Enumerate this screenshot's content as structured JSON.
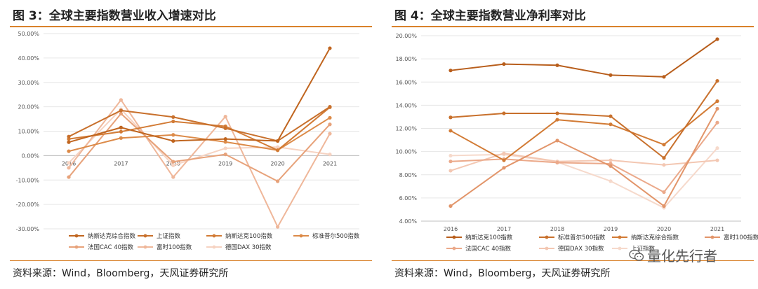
{
  "source_text": "资料来源：Wind，Bloomberg，天风证券研究所",
  "watermark_text": "量化先行者",
  "watermark_icon": "wechat-icon",
  "chart_data": [
    {
      "type": "line",
      "title": "图 3：全球主要指数营业收入增速对比",
      "xlabel": "",
      "ylabel": "",
      "x": [
        "2016",
        "2017",
        "2018",
        "2019",
        "2020",
        "2021"
      ],
      "ylim": [
        -0.3,
        0.5
      ],
      "yticks": [
        "50.00%",
        "40.00%",
        "30.00%",
        "20.00%",
        "10.00%",
        "0.00%",
        "-10.00%",
        "-20.00%",
        "-30.00%"
      ],
      "grid": true,
      "legend": "bottom",
      "series": [
        {
          "name": "纳斯达克综合指数",
          "color": "#c0651f",
          "values": [
            0.055,
            0.115,
            0.06,
            0.068,
            0.06,
            0.44
          ]
        },
        {
          "name": "上证指数",
          "color": "#c8702c",
          "values": [
            0.078,
            0.185,
            0.158,
            0.112,
            0.06,
            0.2
          ]
        },
        {
          "name": "纳斯达克100指数",
          "color": "#d27b35",
          "values": [
            0.068,
            0.098,
            0.14,
            0.12,
            0.022,
            0.198
          ]
        },
        {
          "name": "标准普尔500指数",
          "color": "#dc8a48",
          "values": [
            0.018,
            0.072,
            0.085,
            0.056,
            0.022,
            0.155
          ]
        },
        {
          "name": "法国CAC 40指数",
          "color": "#e7a27a",
          "values": [
            -0.088,
            0.172,
            -0.025,
            0.005,
            -0.105,
            0.128
          ]
        },
        {
          "name": "富时100指数",
          "color": "#efb79a",
          "values": [
            -0.05,
            0.228,
            -0.088,
            0.16,
            -0.292,
            0.09
          ]
        },
        {
          "name": "德国DAX 30指数",
          "color": "#f6d3c2",
          "values": [
            -0.03,
            0.19,
            -0.04,
            0.03,
            0.035,
            0.005
          ]
        }
      ]
    },
    {
      "type": "line",
      "title": "图 4：全球主要指数营业净利率对比",
      "xlabel": "",
      "ylabel": "",
      "x": [
        "2016",
        "2017",
        "2018",
        "2019",
        "2020",
        "2021"
      ],
      "ylim": [
        0.04,
        0.2
      ],
      "yticks": [
        "20.00%",
        "18.00%",
        "16.00%",
        "14.00%",
        "12.00%",
        "10.00%",
        "8.00%",
        "6.00%",
        "4.00%"
      ],
      "grid": true,
      "legend": "bottom",
      "series": [
        {
          "name": "纳斯达克100指数",
          "color": "#b85e1c",
          "values": [
            0.17,
            0.1755,
            0.1745,
            0.166,
            0.1645,
            0.197
          ]
        },
        {
          "name": "标准普尔500指数",
          "color": "#c8702c",
          "values": [
            0.1295,
            0.133,
            0.133,
            0.1305,
            0.0945,
            0.161
          ]
        },
        {
          "name": "纳斯达克综合指数",
          "color": "#d27b35",
          "values": [
            0.118,
            0.0925,
            0.1275,
            0.1235,
            0.106,
            0.1435
          ]
        },
        {
          "name": "富时100指数",
          "color": "#e2956a",
          "values": [
            0.053,
            0.086,
            0.1095,
            0.0875,
            0.053,
            0.137
          ]
        },
        {
          "name": "法国CAC 40指数",
          "color": "#eba98a",
          "values": [
            0.0915,
            0.0935,
            0.0905,
            0.0895,
            0.065,
            0.125
          ]
        },
        {
          "name": "德国DAX 30指数",
          "color": "#f3c7b2",
          "values": [
            0.0835,
            0.0985,
            0.0915,
            0.0925,
            0.0885,
            0.0925
          ]
        },
        {
          "name": "上证指数",
          "color": "#f6d9cb",
          "values": [
            0.0965,
            0.0975,
            0.091,
            0.0745,
            0.0515,
            0.103
          ]
        }
      ]
    }
  ]
}
